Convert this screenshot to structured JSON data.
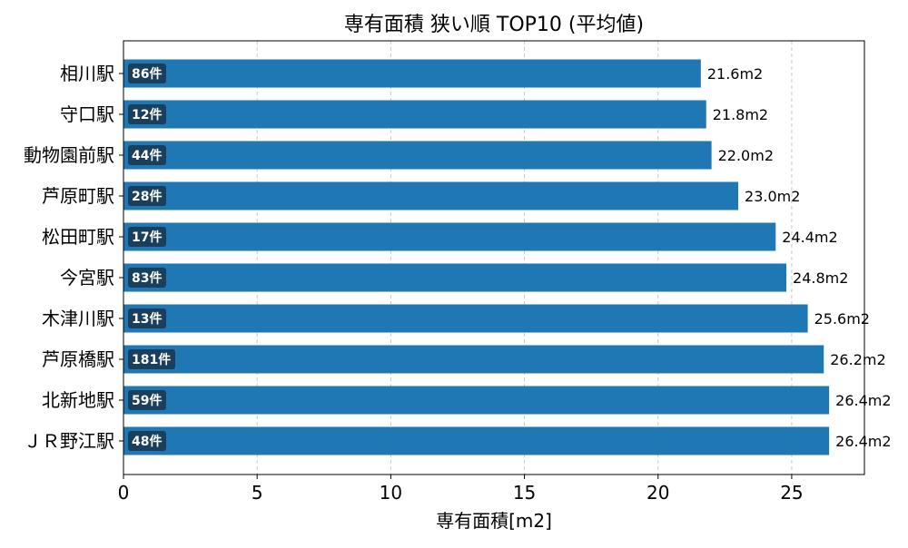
{
  "chart_data": {
    "type": "bar",
    "orientation": "horizontal",
    "title": "専有面積 狭い順 TOP10 (平均値)",
    "xlabel": "専有面積[m2]",
    "ylabel": "",
    "xlim": [
      0,
      27.72
    ],
    "xticks": [
      0,
      5,
      10,
      15,
      20,
      25
    ],
    "grid": "vertical dashed",
    "categories": [
      "相川駅",
      "守口駅",
      "動物園前駅",
      "芦原町駅",
      "松田町駅",
      "今宮駅",
      "木津川駅",
      "芦原橋駅",
      "北新地駅",
      "ＪＲ野江駅"
    ],
    "values": [
      21.6,
      21.8,
      22.0,
      23.0,
      24.4,
      24.8,
      25.6,
      26.2,
      26.4,
      26.4
    ],
    "value_labels": [
      "21.6m2",
      "21.8m2",
      "22.0m2",
      "23.0m2",
      "24.4m2",
      "24.8m2",
      "25.6m2",
      "26.2m2",
      "26.4m2",
      "26.4m2"
    ],
    "counts": [
      "86件",
      "12件",
      "44件",
      "28件",
      "17件",
      "83件",
      "13件",
      "181件",
      "59件",
      "48件"
    ],
    "colors": {
      "bar": "#1f77b4",
      "count_badge": "#1a3f5c",
      "grid": "#c8c8c8",
      "text": "#000000"
    }
  }
}
